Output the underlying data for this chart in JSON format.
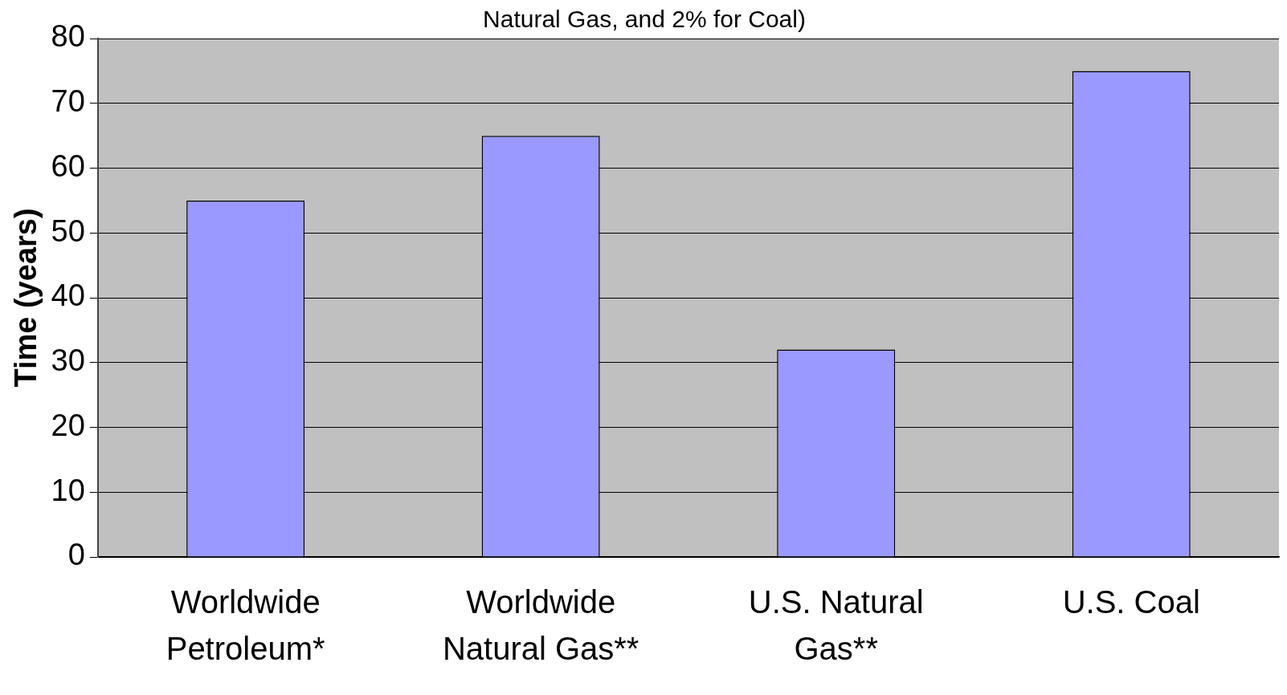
{
  "chart_data": {
    "type": "bar",
    "title": "Natural Gas, and 2% for Coal)",
    "ylabel": "Time (years)",
    "categories": [
      "Worldwide Petroleum*",
      "Worldwide Natural Gas**",
      "U.S. Natural Gas**",
      "U.S. Coal"
    ],
    "values": [
      55,
      65,
      32,
      75
    ],
    "color": "#9999ff",
    "ylim": [
      0,
      80
    ],
    "yticks": [
      0,
      10,
      20,
      30,
      40,
      50,
      60,
      70,
      80
    ],
    "grid": "y",
    "legend": false
  }
}
